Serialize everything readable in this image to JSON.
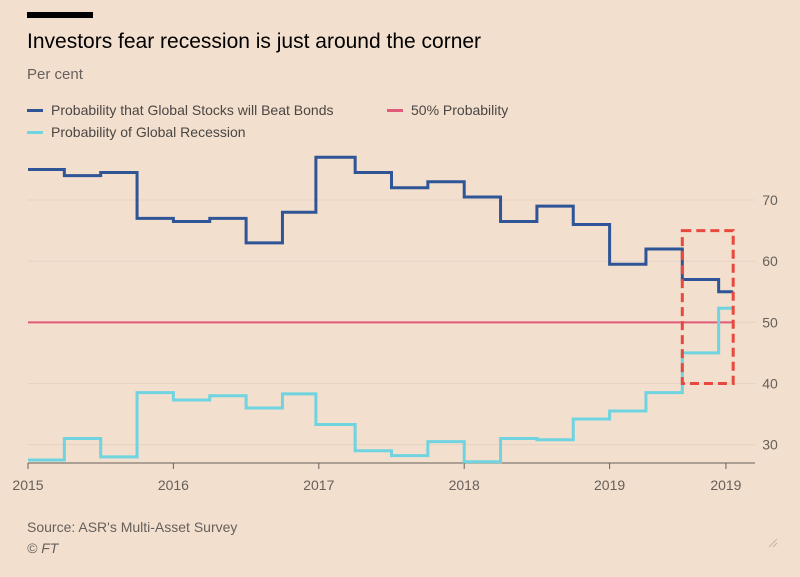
{
  "header": {
    "title": "Investors fear recession is just around the corner",
    "subtitle": "Per cent"
  },
  "legend": {
    "items": [
      {
        "label": "Probability that Global Stocks will Beat Bonds",
        "color": "#2f5597"
      },
      {
        "label": "50% Probability",
        "color": "#e05a7a"
      },
      {
        "label": "Probability of Global Recession",
        "color": "#6fd3e0"
      }
    ]
  },
  "footer": {
    "source": "Source: ASR's Multi-Asset Survey",
    "credit": "© FT"
  },
  "chart_data": {
    "type": "line",
    "title": "Investors fear recession is just around the corner",
    "ylabel": "Per cent",
    "ylim": [
      27,
      79
    ],
    "xlim": [
      2015,
      2020.0
    ],
    "y_ticks": [
      30,
      40,
      50,
      60,
      70
    ],
    "x_tick_labels": [
      {
        "x": 2015,
        "label": "2015"
      },
      {
        "x": 2016,
        "label": "2016"
      },
      {
        "x": 2017,
        "label": "2017"
      },
      {
        "x": 2018,
        "label": "2018"
      },
      {
        "x": 2019,
        "label": "2019"
      },
      {
        "x": 2019.8,
        "label": "2019"
      }
    ],
    "grid": "horizontal",
    "legend_position": "top-left",
    "series": [
      {
        "name": "Probability that Global Stocks will Beat Bonds",
        "color": "#2f5597",
        "step": true,
        "x": [
          2015.0,
          2015.25,
          2015.5,
          2015.75,
          2016.0,
          2016.25,
          2016.5,
          2016.75,
          2016.98,
          2017.25,
          2017.5,
          2017.75,
          2018.0,
          2018.25,
          2018.5,
          2018.75,
          2019.0,
          2019.25,
          2019.5,
          2019.75,
          2019.85
        ],
        "y": [
          75,
          74,
          74.5,
          67,
          66.5,
          67,
          63,
          68,
          77,
          74.5,
          72,
          73,
          70.5,
          66.5,
          69,
          66,
          59.5,
          62,
          57,
          55,
          55
        ]
      },
      {
        "name": "50% Probability",
        "color": "#e05a7a",
        "step": false,
        "x": [
          2015.0,
          2019.85
        ],
        "y": [
          50,
          50
        ]
      },
      {
        "name": "Probability of Global Recession",
        "color": "#6fd3e0",
        "step": true,
        "x": [
          2015.0,
          2015.25,
          2015.5,
          2015.75,
          2016.0,
          2016.25,
          2016.5,
          2016.75,
          2016.98,
          2017.25,
          2017.5,
          2017.75,
          2018.0,
          2018.25,
          2018.5,
          2018.75,
          2019.0,
          2019.25,
          2019.5,
          2019.75,
          2019.85
        ],
        "y": [
          27.5,
          31,
          28,
          38.5,
          37.3,
          38,
          36,
          38.3,
          33.3,
          29,
          28.2,
          30.5,
          27.2,
          31,
          30.8,
          34.2,
          35.5,
          38.5,
          45,
          52.3,
          52.3
        ]
      }
    ],
    "annotations": [
      {
        "type": "dashed-box",
        "color": "#e8493f",
        "x_range": [
          2019.5,
          2019.85
        ],
        "y_range": [
          40,
          65
        ]
      }
    ]
  }
}
